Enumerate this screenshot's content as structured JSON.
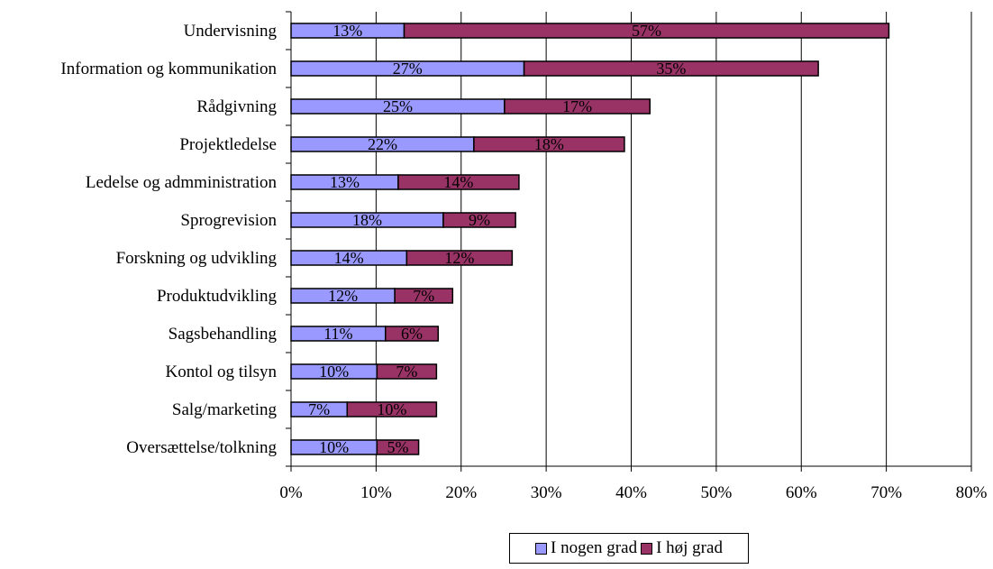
{
  "chart_data": {
    "type": "bar",
    "orientation": "horizontal",
    "stacked": true,
    "categories": [
      "Undervisning",
      "Information og kommunikation",
      "Rådgivning",
      "Projektledelse",
      "Ledelse og admministration",
      "Sprogrevision",
      "Forskning og udvikling",
      "Produktudvikling",
      "Sagsbehandling",
      "Kontol og tilsyn",
      "Salg/marketing",
      "Oversættelse/tolkning"
    ],
    "series": [
      {
        "name": "I nogen grad",
        "color": "#9999ff",
        "values": [
          13.3,
          27.4,
          25.1,
          21.5,
          12.6,
          17.9,
          13.6,
          12.2,
          11.1,
          10.1,
          6.6,
          10.1
        ],
        "labels": [
          "13%",
          "27%",
          "25%",
          "22%",
          "13%",
          "18%",
          "14%",
          "12%",
          "11%",
          "10%",
          "7%",
          "10%"
        ]
      },
      {
        "name": "I høj grad",
        "color": "#993366",
        "values": [
          57.0,
          34.6,
          17.1,
          17.7,
          14.2,
          8.5,
          12.4,
          6.8,
          6.2,
          7.0,
          10.5,
          4.9
        ],
        "labels": [
          "57%",
          "35%",
          "17%",
          "18%",
          "14%",
          "9%",
          "12%",
          "7%",
          "6%",
          "7%",
          "10%",
          "5%"
        ]
      }
    ],
    "xlim": [
      0,
      80
    ],
    "xticks": [
      "0%",
      "10%",
      "20%",
      "30%",
      "40%",
      "50%",
      "60%",
      "70%",
      "80%"
    ],
    "grid": true,
    "legend_position": "bottom"
  }
}
